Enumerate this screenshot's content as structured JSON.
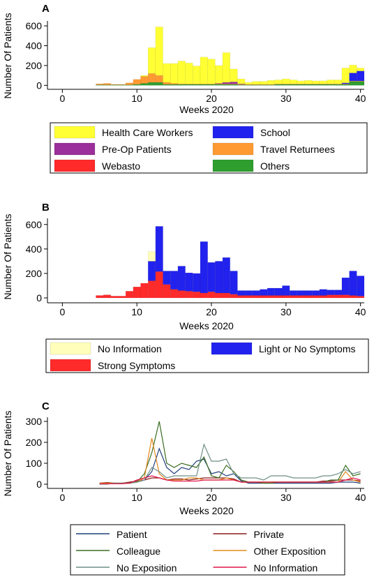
{
  "figure": {
    "panels": [
      {
        "letter": "A",
        "ylabel": "Number Of Patients",
        "xlabel": "Weeks 2020"
      },
      {
        "letter": "B",
        "ylabel": "Number Of Patients",
        "xlabel": "Weeks 2020"
      },
      {
        "letter": "C",
        "ylabel": "Number Of Patients",
        "xlabel": "Weeks 2020"
      }
    ]
  },
  "chart_data": [
    {
      "type": "bar",
      "panel": "A",
      "stacked": true,
      "xlabel": "Weeks 2020",
      "ylabel": "Number Of Patients",
      "xlim": [
        -2,
        40.5
      ],
      "ylim": [
        -40,
        650
      ],
      "xticks": [
        0,
        10,
        20,
        30,
        40
      ],
      "yticks": [
        0,
        200,
        400,
        600
      ],
      "x": [
        5,
        6,
        7,
        8,
        9,
        10,
        11,
        12,
        13,
        14,
        15,
        16,
        17,
        18,
        19,
        20,
        21,
        22,
        23,
        24,
        25,
        26,
        27,
        28,
        29,
        30,
        31,
        32,
        33,
        34,
        35,
        36,
        37,
        38,
        39,
        40
      ],
      "series": [
        {
          "name": "Others",
          "color": "#2e9e2e",
          "values": [
            5,
            5,
            5,
            5,
            5,
            10,
            20,
            30,
            30,
            10,
            10,
            10,
            10,
            10,
            10,
            10,
            10,
            10,
            10,
            5,
            5,
            5,
            5,
            5,
            10,
            10,
            10,
            10,
            10,
            10,
            10,
            10,
            10,
            10,
            40,
            40
          ]
        },
        {
          "name": "Webasto",
          "color": "#ff2a2a",
          "values": [
            0,
            0,
            0,
            0,
            0,
            0,
            0,
            0,
            0,
            0,
            0,
            0,
            0,
            0,
            0,
            0,
            0,
            0,
            0,
            0,
            0,
            0,
            0,
            0,
            0,
            0,
            0,
            0,
            0,
            0,
            0,
            0,
            0,
            0,
            0,
            0
          ]
        },
        {
          "name": "Travel Returnees",
          "color": "#ff9a33",
          "values": [
            10,
            15,
            5,
            5,
            20,
            50,
            70,
            90,
            70,
            20,
            10,
            5,
            5,
            5,
            5,
            5,
            5,
            5,
            5,
            5,
            5,
            5,
            5,
            5,
            5,
            5,
            5,
            5,
            5,
            5,
            5,
            5,
            5,
            5,
            5,
            5
          ]
        },
        {
          "name": "Pre-Op Patients",
          "color": "#9b2f9b",
          "values": [
            0,
            0,
            0,
            0,
            0,
            0,
            0,
            0,
            0,
            0,
            0,
            0,
            0,
            0,
            0,
            0,
            5,
            15,
            20,
            5,
            0,
            0,
            0,
            0,
            0,
            0,
            0,
            0,
            0,
            0,
            0,
            0,
            0,
            0,
            0,
            0
          ]
        },
        {
          "name": "School",
          "color": "#2222ee",
          "values": [
            0,
            0,
            0,
            0,
            0,
            0,
            0,
            0,
            0,
            0,
            0,
            0,
            0,
            0,
            0,
            0,
            0,
            0,
            0,
            0,
            0,
            0,
            0,
            0,
            0,
            0,
            0,
            0,
            0,
            0,
            0,
            0,
            0,
            10,
            80,
            100
          ]
        },
        {
          "name": "Health Care Workers",
          "color": "#ffff33",
          "values": [
            0,
            0,
            0,
            0,
            0,
            0,
            10,
            260,
            490,
            190,
            200,
            230,
            210,
            180,
            270,
            250,
            180,
            300,
            130,
            50,
            20,
            30,
            30,
            40,
            40,
            50,
            40,
            30,
            35,
            30,
            30,
            40,
            40,
            150,
            80,
            30
          ]
        }
      ],
      "legend": {
        "position": "bottom",
        "columns": 2,
        "order": [
          "Health Care Workers",
          "School",
          "Pre-Op Patients",
          "Travel Returnees",
          "Webasto",
          "Others"
        ]
      }
    },
    {
      "type": "bar",
      "panel": "B",
      "stacked": true,
      "xlabel": "Weeks 2020",
      "ylabel": "Number Of Patients",
      "xlim": [
        -2,
        40.5
      ],
      "ylim": [
        -40,
        650
      ],
      "xticks": [
        0,
        10,
        20,
        30,
        40
      ],
      "yticks": [
        0,
        200,
        400,
        600
      ],
      "x": [
        5,
        6,
        7,
        8,
        9,
        10,
        11,
        12,
        13,
        14,
        15,
        16,
        17,
        18,
        19,
        20,
        21,
        22,
        23,
        24,
        25,
        26,
        27,
        28,
        29,
        30,
        31,
        32,
        33,
        34,
        35,
        36,
        37,
        38,
        39,
        40
      ],
      "series": [
        {
          "name": "Strong Symptoms",
          "color": "#ff2a2a",
          "values": [
            20,
            25,
            15,
            15,
            55,
            90,
            120,
            140,
            215,
            110,
            70,
            60,
            55,
            50,
            40,
            50,
            40,
            40,
            30,
            20,
            20,
            20,
            20,
            20,
            20,
            20,
            20,
            20,
            20,
            20,
            20,
            25,
            25,
            25,
            20,
            15
          ]
        },
        {
          "name": "Light or No Symptoms",
          "color": "#2222ee",
          "values": [
            0,
            0,
            0,
            0,
            0,
            0,
            0,
            160,
            370,
            110,
            150,
            200,
            150,
            150,
            420,
            240,
            260,
            290,
            190,
            40,
            40,
            40,
            50,
            60,
            60,
            80,
            40,
            40,
            40,
            40,
            50,
            40,
            40,
            140,
            200,
            165
          ]
        },
        {
          "name": "No Information",
          "color": "#ffffbb",
          "values": [
            0,
            0,
            0,
            0,
            0,
            0,
            0,
            80,
            0,
            0,
            0,
            0,
            0,
            0,
            0,
            0,
            0,
            0,
            0,
            0,
            0,
            0,
            0,
            0,
            0,
            0,
            0,
            0,
            0,
            0,
            0,
            0,
            0,
            0,
            0,
            0
          ]
        }
      ],
      "legend": {
        "position": "bottom",
        "columns": 2,
        "order": [
          "No Information",
          "Light or No Symptoms",
          "Strong Symptoms"
        ]
      }
    },
    {
      "type": "line",
      "panel": "C",
      "xlabel": "Weeks 2020",
      "ylabel": "Number Of Patients",
      "xlim": [
        -2,
        40.5
      ],
      "ylim": [
        -20,
        320
      ],
      "xticks": [
        0,
        10,
        20,
        30,
        40
      ],
      "yticks": [
        0,
        100,
        200,
        300
      ],
      "x": [
        5,
        6,
        7,
        8,
        9,
        10,
        11,
        12,
        13,
        14,
        15,
        16,
        17,
        18,
        19,
        20,
        21,
        22,
        23,
        24,
        25,
        26,
        27,
        28,
        29,
        30,
        31,
        32,
        33,
        34,
        35,
        36,
        37,
        38,
        39,
        40
      ],
      "series": [
        {
          "name": "Patient",
          "color": "#1f3f7a",
          "values": [
            5,
            5,
            3,
            3,
            5,
            10,
            20,
            60,
            170,
            80,
            50,
            80,
            70,
            110,
            120,
            50,
            60,
            40,
            50,
            15,
            5,
            5,
            5,
            5,
            5,
            5,
            5,
            5,
            5,
            5,
            5,
            5,
            10,
            10,
            10,
            5
          ]
        },
        {
          "name": "Private",
          "color": "#8b1a1a",
          "values": [
            5,
            8,
            5,
            5,
            10,
            15,
            20,
            30,
            30,
            20,
            25,
            25,
            20,
            25,
            30,
            30,
            30,
            30,
            25,
            10,
            10,
            10,
            10,
            10,
            10,
            10,
            10,
            10,
            10,
            10,
            15,
            15,
            20,
            20,
            20,
            15
          ]
        },
        {
          "name": "Colleague",
          "color": "#3b6e22",
          "values": [
            0,
            5,
            5,
            5,
            5,
            10,
            50,
            150,
            300,
            100,
            80,
            100,
            90,
            80,
            130,
            40,
            30,
            90,
            60,
            20,
            10,
            10,
            5,
            5,
            10,
            10,
            10,
            10,
            10,
            10,
            10,
            20,
            20,
            90,
            40,
            50
          ]
        },
        {
          "name": "Other Exposition",
          "color": "#e08a1e",
          "values": [
            5,
            5,
            5,
            5,
            5,
            10,
            30,
            220,
            50,
            20,
            20,
            20,
            30,
            30,
            20,
            20,
            20,
            30,
            20,
            10,
            10,
            10,
            10,
            10,
            10,
            10,
            10,
            10,
            10,
            10,
            10,
            10,
            10,
            60,
            20,
            10
          ]
        },
        {
          "name": "No Exposition",
          "color": "#6f8f88",
          "values": [
            0,
            0,
            5,
            5,
            5,
            10,
            20,
            80,
            60,
            30,
            40,
            40,
            40,
            40,
            190,
            110,
            110,
            120,
            50,
            30,
            30,
            30,
            20,
            40,
            40,
            40,
            30,
            30,
            30,
            30,
            40,
            40,
            50,
            70,
            50,
            60
          ]
        },
        {
          "name": "No Information",
          "color": "#e0164a",
          "values": [
            2,
            2,
            2,
            2,
            5,
            20,
            30,
            40,
            30,
            20,
            15,
            15,
            15,
            15,
            20,
            20,
            20,
            20,
            20,
            10,
            10,
            10,
            10,
            10,
            10,
            10,
            10,
            10,
            10,
            10,
            10,
            10,
            10,
            20,
            30,
            20
          ]
        }
      ],
      "legend": {
        "position": "bottom",
        "columns": 2,
        "order": [
          "Patient",
          "Private",
          "Colleague",
          "Other Exposition",
          "No Exposition",
          "No Information"
        ]
      }
    }
  ]
}
